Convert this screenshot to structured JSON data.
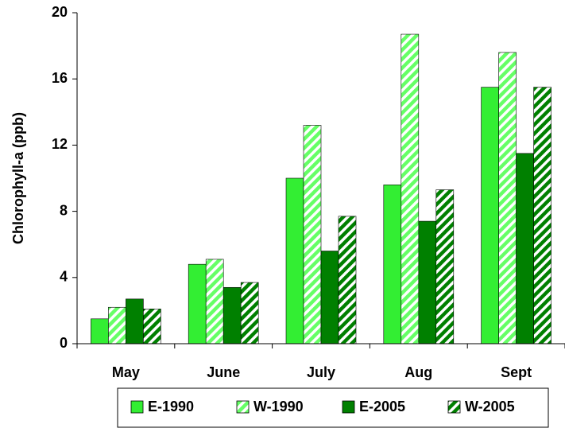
{
  "chart_data": {
    "type": "bar",
    "y_label": "Chlorophyll-a (ppb)",
    "categories": [
      "May",
      "June",
      "July",
      "Aug",
      "Sept"
    ],
    "series": [
      {
        "name": "E-1990",
        "color": "#33ee33",
        "hatch": false,
        "values": [
          1.5,
          4.8,
          10.0,
          9.6,
          15.5
        ]
      },
      {
        "name": "W-1990",
        "color": "#66ff66",
        "hatch": true,
        "values": [
          2.2,
          5.1,
          13.2,
          18.7,
          17.6
        ]
      },
      {
        "name": "E-2005",
        "color": "#008000",
        "hatch": false,
        "values": [
          2.7,
          3.4,
          5.6,
          7.4,
          11.5
        ]
      },
      {
        "name": "W-2005",
        "color": "#008000",
        "hatch": true,
        "values": [
          2.1,
          3.7,
          7.7,
          9.3,
          15.5
        ]
      }
    ],
    "ylim": [
      0,
      20
    ],
    "yticks": [
      0,
      4,
      8,
      12,
      16,
      20
    ],
    "grid": false,
    "legend": "bottom"
  }
}
